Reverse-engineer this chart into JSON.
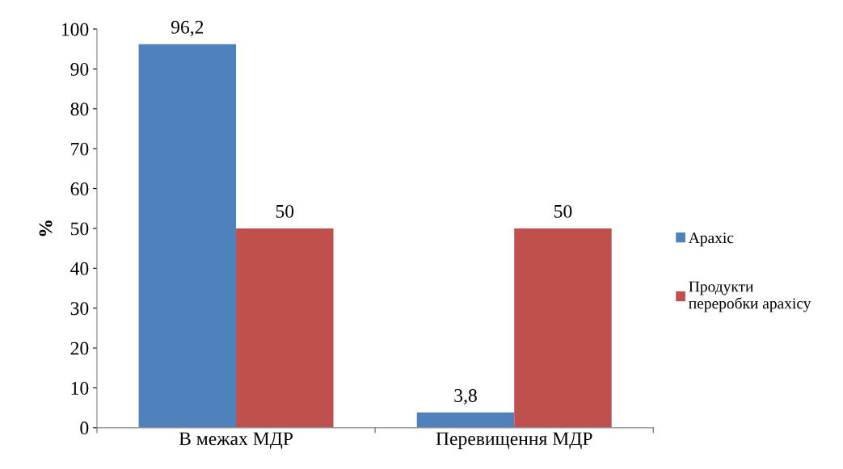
{
  "chart_data": {
    "type": "bar",
    "ylabel": "%",
    "categories": [
      "В межах МДР",
      "Перевищення МДР"
    ],
    "series": [
      {
        "name": "Арахіс",
        "color": "#4f81bd",
        "values": [
          96.2,
          3.8
        ],
        "value_labels": [
          "96,2",
          "3,8"
        ]
      },
      {
        "name": "Продукти переробки арахісу",
        "color": "#c0504d",
        "values": [
          50,
          50
        ],
        "value_labels": [
          "50",
          "50"
        ]
      }
    ],
    "ylim": [
      0,
      100
    ],
    "yticks": [
      0,
      10,
      20,
      30,
      40,
      50,
      60,
      70,
      80,
      90,
      100
    ],
    "grid": false,
    "legend": "right"
  }
}
